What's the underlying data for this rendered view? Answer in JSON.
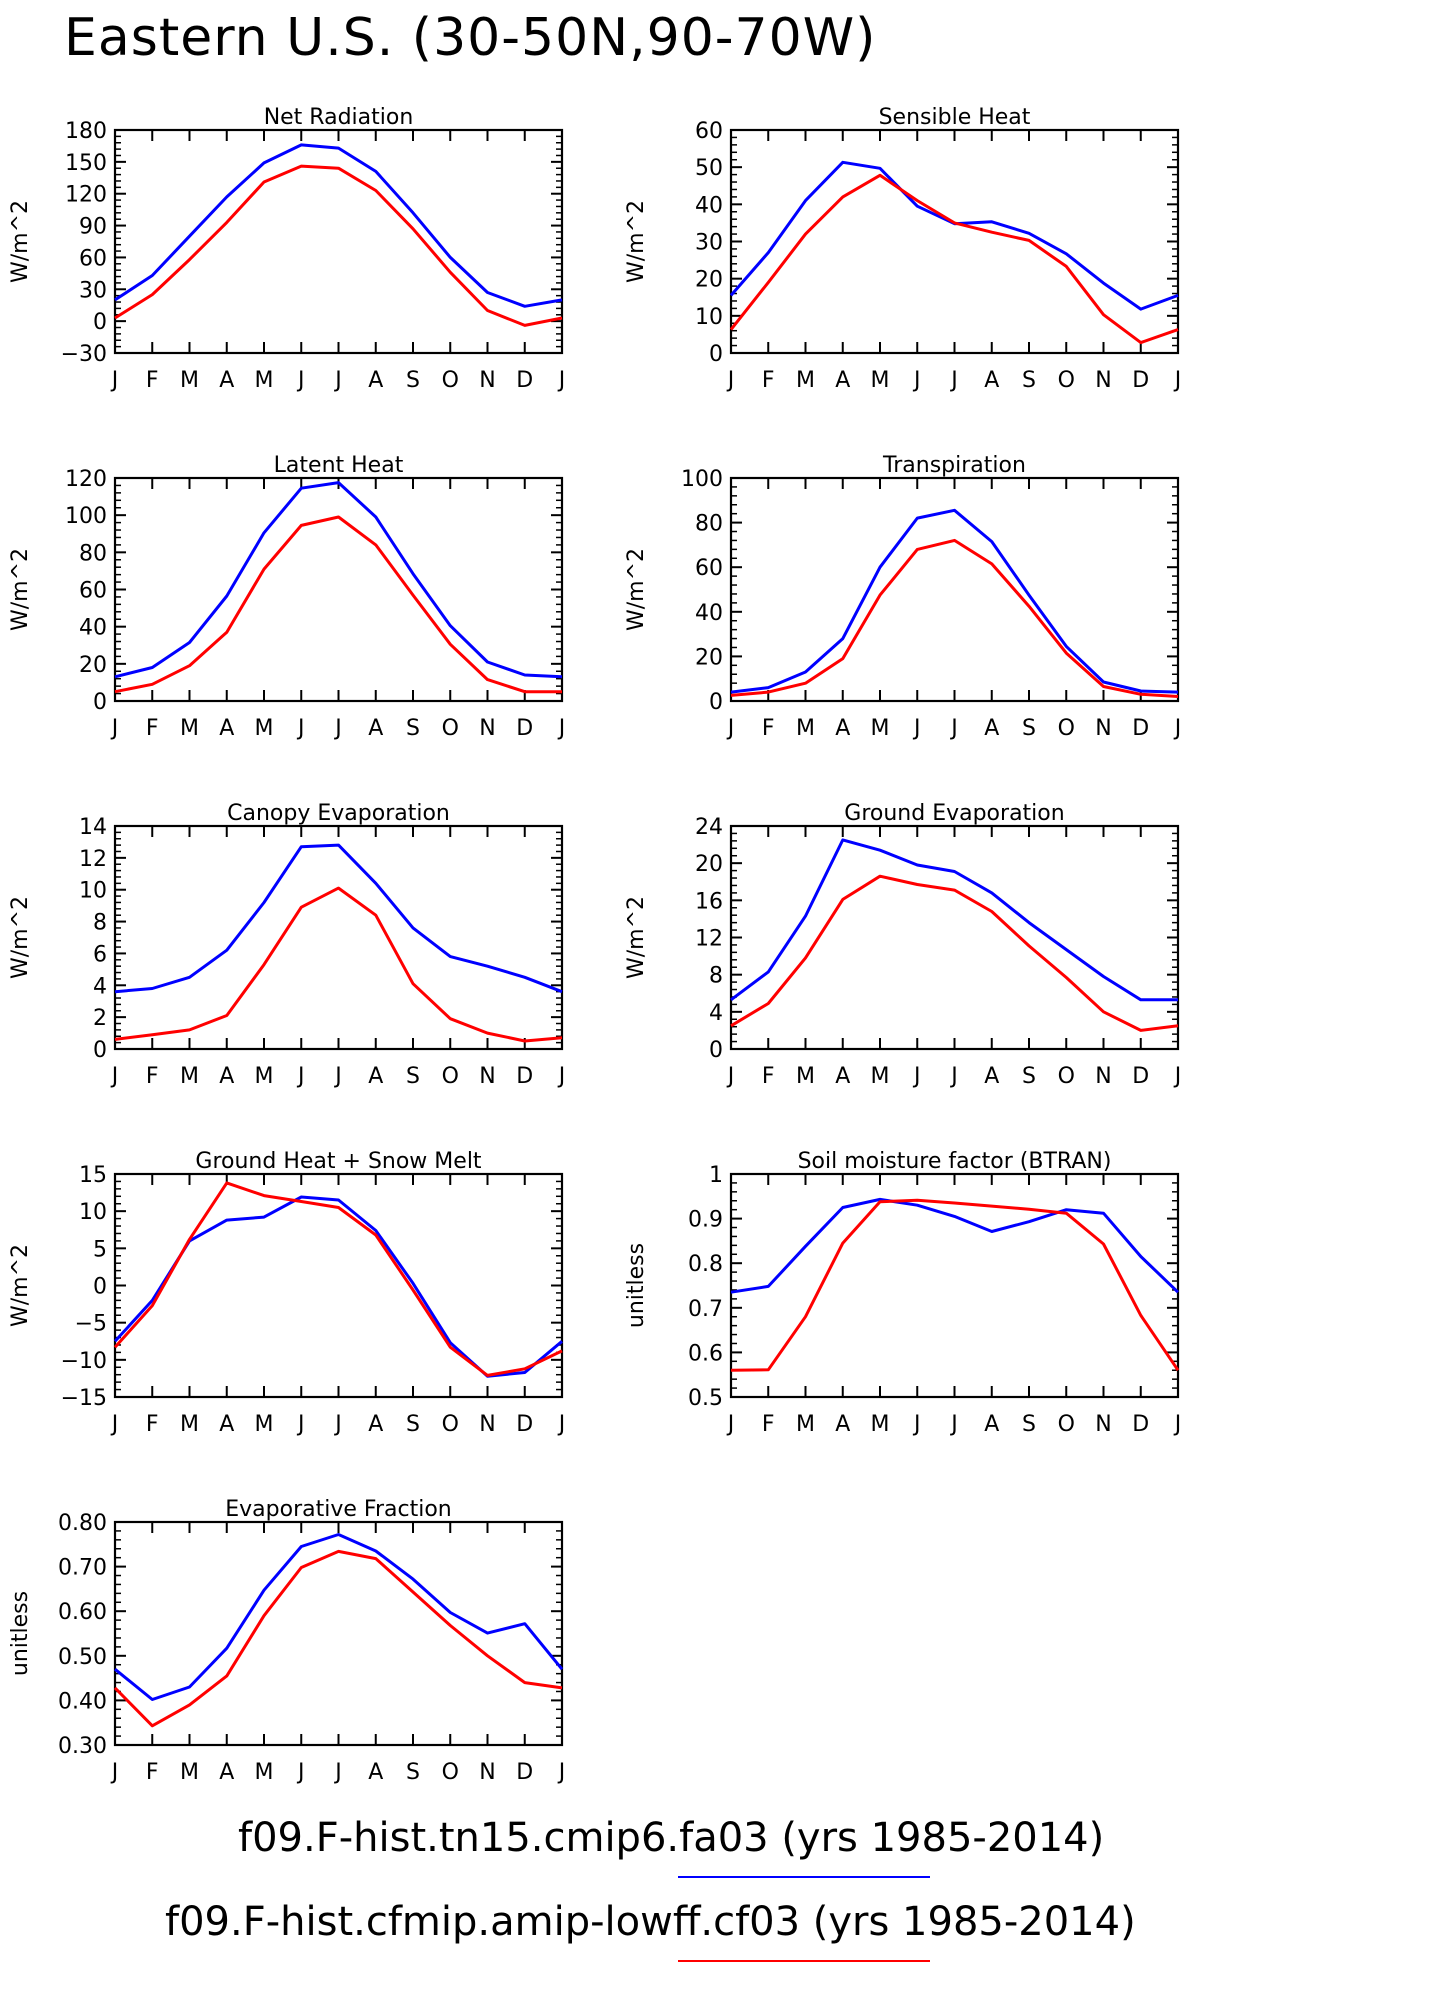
{
  "title": "Eastern U.S. (30-50N,90-70W)",
  "month_labels": [
    "J",
    "F",
    "M",
    "A",
    "M",
    "J",
    "J",
    "A",
    "S",
    "O",
    "N",
    "D",
    "J"
  ],
  "series_colors": [
    "#0000ff",
    "#ff0000"
  ],
  "legend": [
    {
      "label": "f09.F-hist.tn15.cmip6.fa03 (yrs 1985-2014)",
      "color": "#0000ff"
    },
    {
      "label": "f09.F-hist.cfmip.amip-lowff.cf03 (yrs 1985-2014)",
      "color": "#ff0000"
    }
  ],
  "chart_data": [
    {
      "type": "line",
      "title": "Net Radiation",
      "ylabel": "W/m^2",
      "ylim": [
        -30,
        180
      ],
      "yticks": [
        -30,
        0,
        30,
        60,
        90,
        120,
        150,
        180
      ],
      "x": [
        "J",
        "F",
        "M",
        "A",
        "M",
        "J",
        "J",
        "A",
        "S",
        "O",
        "N",
        "D",
        "J"
      ],
      "series": [
        {
          "values": [
            20,
            43,
            80,
            117,
            149,
            166,
            163,
            141,
            102,
            60,
            27,
            14,
            20
          ]
        },
        {
          "values": [
            3,
            25,
            58,
            93,
            131,
            146,
            144,
            123,
            87,
            46,
            10,
            -4,
            3
          ]
        }
      ]
    },
    {
      "type": "line",
      "title": "Sensible Heat",
      "ylabel": "W/m^2",
      "ylim": [
        0,
        60
      ],
      "yticks": [
        0,
        10,
        20,
        30,
        40,
        50,
        60
      ],
      "x": [
        "J",
        "F",
        "M",
        "A",
        "M",
        "J",
        "J",
        "A",
        "S",
        "O",
        "N",
        "D",
        "J"
      ],
      "series": [
        {
          "values": [
            15.5,
            27,
            41,
            51.3,
            49.7,
            39.5,
            34.8,
            35.3,
            32.2,
            26.7,
            18.8,
            11.8,
            15.5
          ]
        },
        {
          "values": [
            6.3,
            19,
            32,
            42,
            47.8,
            41,
            35,
            32.5,
            30.3,
            23.3,
            10.3,
            2.8,
            6.3
          ]
        }
      ]
    },
    {
      "type": "line",
      "title": "Latent Heat",
      "ylabel": "W/m^2",
      "ylim": [
        0,
        120
      ],
      "yticks": [
        0,
        20,
        40,
        60,
        80,
        100,
        120
      ],
      "x": [
        "J",
        "F",
        "M",
        "A",
        "M",
        "J",
        "J",
        "A",
        "S",
        "O",
        "N",
        "D",
        "J"
      ],
      "series": [
        {
          "values": [
            13,
            18,
            31.5,
            56.5,
            90.5,
            114.5,
            117.5,
            99,
            68.5,
            40.5,
            21,
            14,
            13
          ]
        },
        {
          "values": [
            5,
            9,
            19,
            37,
            71,
            94.5,
            99,
            84,
            57,
            30.5,
            11.5,
            5,
            5
          ]
        }
      ]
    },
    {
      "type": "line",
      "title": "Transpiration",
      "ylabel": "W/m^2",
      "ylim": [
        0,
        100
      ],
      "yticks": [
        0,
        20,
        40,
        60,
        80,
        100
      ],
      "x": [
        "J",
        "F",
        "M",
        "A",
        "M",
        "J",
        "J",
        "A",
        "S",
        "O",
        "N",
        "D",
        "J"
      ],
      "series": [
        {
          "values": [
            4,
            6,
            13,
            28,
            60,
            82,
            85.5,
            71.5,
            47.5,
            24.5,
            8.5,
            4.5,
            4
          ]
        },
        {
          "values": [
            2.5,
            4,
            8,
            19,
            47.5,
            68,
            72,
            61.5,
            42.5,
            21.5,
            6.5,
            3,
            2
          ]
        }
      ]
    },
    {
      "type": "line",
      "title": "Canopy Evaporation",
      "ylabel": "W/m^2",
      "ylim": [
        0,
        14
      ],
      "yticks": [
        0,
        2,
        4,
        6,
        8,
        10,
        12,
        14
      ],
      "x": [
        "J",
        "F",
        "M",
        "A",
        "M",
        "J",
        "J",
        "A",
        "S",
        "O",
        "N",
        "D",
        "J"
      ],
      "series": [
        {
          "values": [
            3.6,
            3.8,
            4.5,
            6.2,
            9.2,
            12.7,
            12.8,
            10.4,
            7.6,
            5.8,
            5.2,
            4.5,
            3.6
          ]
        },
        {
          "values": [
            0.6,
            0.9,
            1.2,
            2.1,
            5.3,
            8.9,
            10.1,
            8.4,
            4.1,
            1.9,
            1.0,
            0.5,
            0.7
          ]
        }
      ]
    },
    {
      "type": "line",
      "title": "Ground Evaporation",
      "ylabel": "W/m^2",
      "ylim": [
        0,
        24
      ],
      "yticks": [
        0,
        4,
        8,
        12,
        16,
        20,
        24
      ],
      "x": [
        "J",
        "F",
        "M",
        "A",
        "M",
        "J",
        "J",
        "A",
        "S",
        "O",
        "N",
        "D",
        "J"
      ],
      "series": [
        {
          "values": [
            5.3,
            8.3,
            14.3,
            22.5,
            21.4,
            19.8,
            19.1,
            16.8,
            13.6,
            10.7,
            7.8,
            5.3,
            5.3
          ]
        },
        {
          "values": [
            2.5,
            4.9,
            9.8,
            16.1,
            18.6,
            17.7,
            17.1,
            14.8,
            11.1,
            7.7,
            4.0,
            2.0,
            2.5
          ]
        }
      ]
    },
    {
      "type": "line",
      "title": "Ground Heat + Snow Melt",
      "ylabel": "W/m^2",
      "ylim": [
        -15,
        15
      ],
      "yticks": [
        -15,
        -10,
        -5,
        0,
        5,
        10,
        15
      ],
      "x": [
        "J",
        "F",
        "M",
        "A",
        "M",
        "J",
        "J",
        "A",
        "S",
        "O",
        "N",
        "D",
        "J"
      ],
      "series": [
        {
          "values": [
            -7.5,
            -2.0,
            6.0,
            8.8,
            9.2,
            11.9,
            11.5,
            7.4,
            0.3,
            -7.7,
            -12.2,
            -11.7,
            -7.5
          ]
        },
        {
          "values": [
            -8.3,
            -2.7,
            6.2,
            13.8,
            12.1,
            11.3,
            10.5,
            6.8,
            -0.6,
            -8.3,
            -12.1,
            -11.2,
            -8.8
          ]
        }
      ]
    },
    {
      "type": "line",
      "title": "Soil moisture factor (BTRAN)",
      "ylabel": "unitless",
      "ylim": [
        0.5,
        1.0
      ],
      "yticks": [
        0.5,
        0.6,
        0.7,
        0.8,
        0.9,
        1.0
      ],
      "x": [
        "J",
        "F",
        "M",
        "A",
        "M",
        "J",
        "J",
        "A",
        "S",
        "O",
        "N",
        "D",
        "J"
      ],
      "series": [
        {
          "values": [
            0.735,
            0.748,
            0.838,
            0.925,
            0.943,
            0.93,
            0.905,
            0.871,
            0.893,
            0.92,
            0.912,
            0.815,
            0.735
          ]
        },
        {
          "values": [
            0.56,
            0.561,
            0.68,
            0.845,
            0.938,
            0.941,
            0.935,
            0.928,
            0.921,
            0.912,
            0.843,
            0.683,
            0.56
          ]
        }
      ]
    },
    {
      "type": "line",
      "title": "Evaporative Fraction",
      "ylabel": "unitless",
      "ylim": [
        0.3,
        0.8
      ],
      "yticks": [
        0.3,
        0.4,
        0.5,
        0.6,
        0.7,
        0.8
      ],
      "ytick_decimals": 2,
      "x": [
        "J",
        "F",
        "M",
        "A",
        "M",
        "J",
        "J",
        "A",
        "S",
        "O",
        "N",
        "D",
        "J"
      ],
      "series": [
        {
          "values": [
            0.47,
            0.402,
            0.43,
            0.517,
            0.647,
            0.745,
            0.772,
            0.735,
            0.672,
            0.597,
            0.551,
            0.572,
            0.47
          ]
        },
        {
          "values": [
            0.428,
            0.343,
            0.39,
            0.455,
            0.59,
            0.698,
            0.734,
            0.718,
            0.643,
            0.568,
            0.5,
            0.44,
            0.428
          ]
        }
      ]
    }
  ]
}
